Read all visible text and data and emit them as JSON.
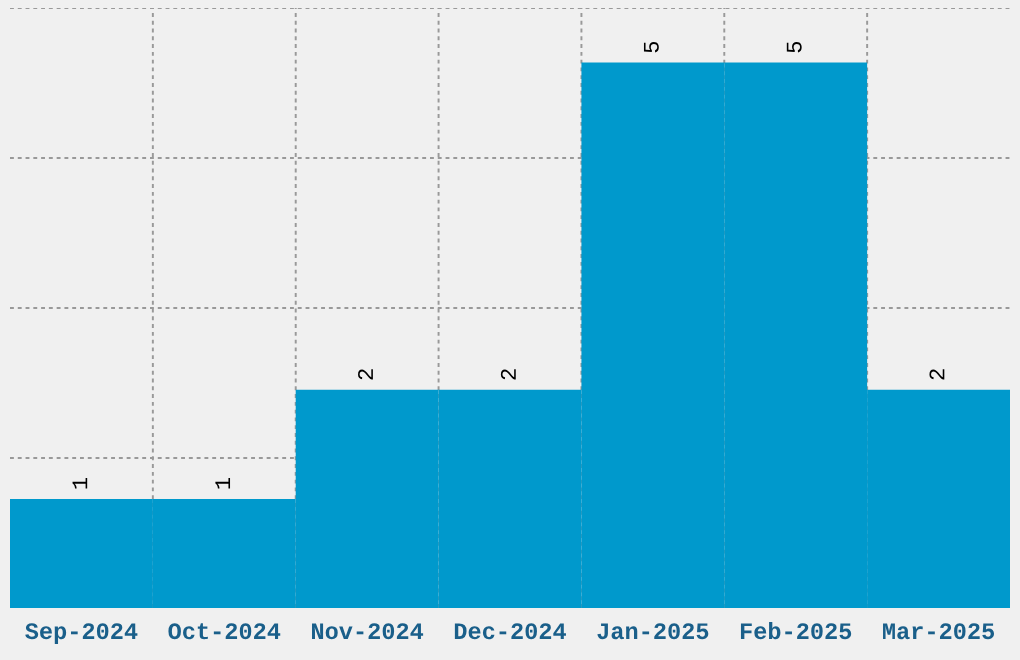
{
  "chart_data": {
    "type": "bar",
    "categories": [
      "Sep-2024",
      "Oct-2024",
      "Nov-2024",
      "Dec-2024",
      "Jan-2025",
      "Feb-2025",
      "Mar-2025"
    ],
    "values": [
      1,
      1,
      2,
      2,
      5,
      5,
      2
    ],
    "color": "#0099cc",
    "ylim": [
      0,
      5.5
    ],
    "yticks": [
      {
        "value": 1.375,
        "label": null
      },
      {
        "value": 2.75,
        "label": null
      },
      {
        "value": 4.125,
        "label": null
      },
      {
        "value": 5.5,
        "label": null
      }
    ],
    "grid": true,
    "data_labels": true,
    "tick_labels": "x"
  }
}
